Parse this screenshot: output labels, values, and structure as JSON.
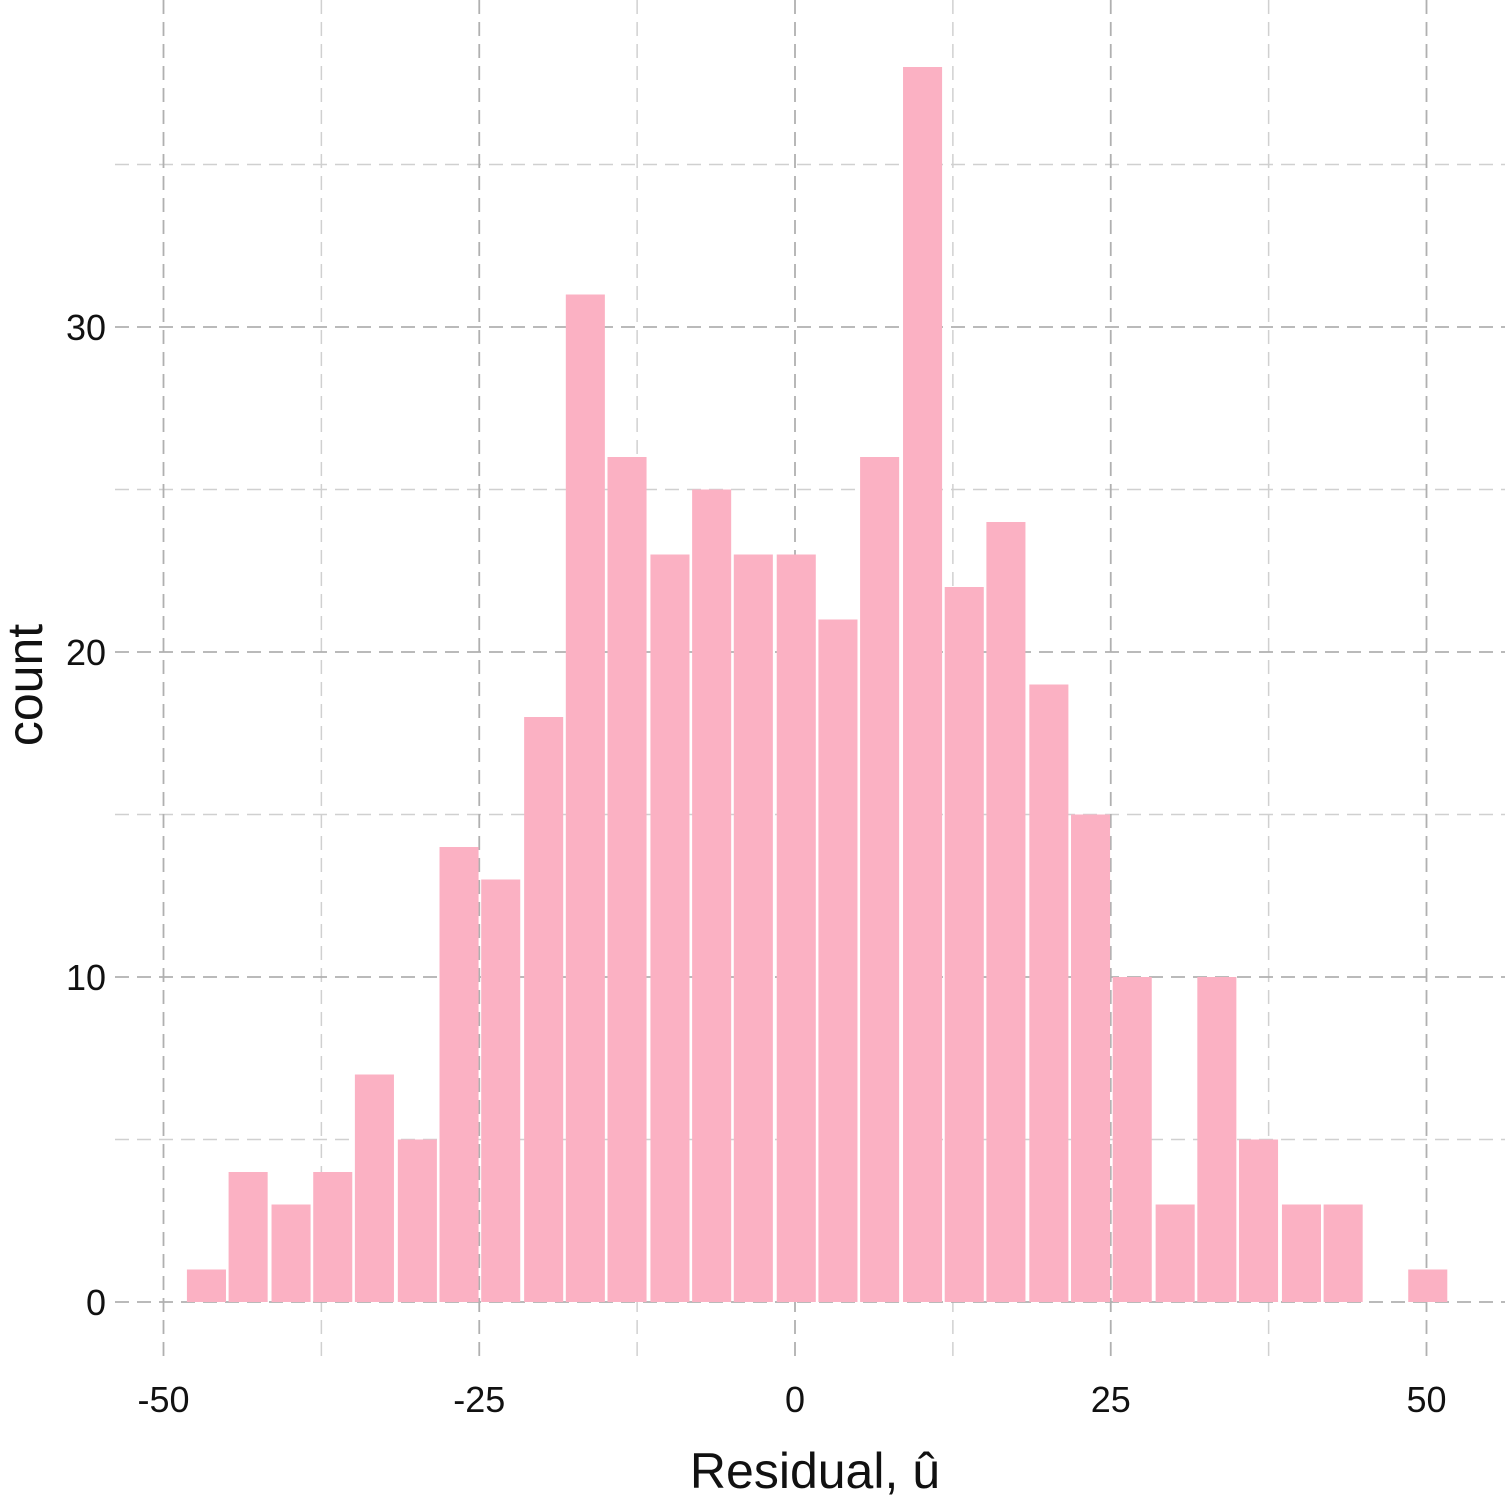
{
  "chart_data": {
    "type": "bar",
    "subtype": "histogram",
    "title": "",
    "xlabel": "Residual, û",
    "ylabel": "count",
    "xlim": [
      -52,
      56
    ],
    "ylim": [
      -1.5,
      40
    ],
    "xticks": [
      -50,
      -25,
      0,
      25,
      50
    ],
    "xtick_labels": [
      "-50",
      "-25",
      "0",
      "25",
      "50"
    ],
    "yticks": [
      0,
      10,
      20,
      30
    ],
    "ytick_labels": [
      "0",
      "10",
      "20",
      "30"
    ],
    "grid": "on, dashed (major and minor)",
    "bin_width": 3.33,
    "bin_centers": [
      -46.6,
      -43.3,
      -39.9,
      -36.6,
      -33.3,
      -29.9,
      -26.6,
      -23.3,
      -19.9,
      -16.6,
      -13.3,
      -9.9,
      -6.6,
      -3.3,
      0.1,
      3.4,
      6.7,
      10.1,
      13.4,
      16.7,
      20.1,
      23.4,
      26.7,
      30.1,
      33.4,
      36.7,
      40.1,
      43.4,
      46.7,
      50.1
    ],
    "values": [
      1,
      4,
      3,
      4,
      7,
      5,
      14,
      13,
      18,
      31,
      26,
      23,
      25,
      23,
      23,
      21,
      26,
      38,
      22,
      24,
      19,
      15,
      10,
      3,
      10,
      5,
      3,
      3,
      0,
      1
    ],
    "bar_color": "#fbb1c3",
    "legend": "none"
  }
}
